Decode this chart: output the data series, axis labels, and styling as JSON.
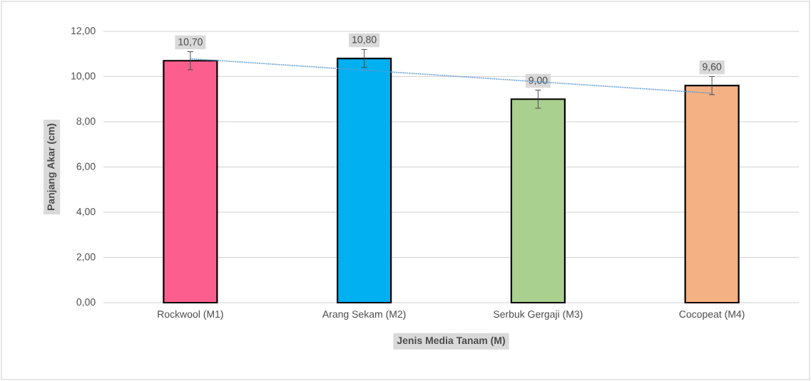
{
  "chart_data": {
    "type": "bar",
    "xlabel": "Jenis Media Tanam (M)",
    "ylabel": "Panjang Akar (cm)",
    "categories": [
      "Rockwool (M1)",
      "Arang Sekam (M2)",
      "Serbuk Gergaji (M3)",
      "Cocopeat (M4)"
    ],
    "series": [
      {
        "values": [
          10.7,
          10.8,
          9.0,
          9.6
        ],
        "colors": [
          "#fc5f8e",
          "#00b0f0",
          "#a9d08e",
          "#f4b183"
        ],
        "errors": [
          0.4,
          0.4,
          0.4,
          0.4
        ],
        "value_labels": [
          "10,70",
          "10,80",
          "9,00",
          "9,60"
        ]
      },
      {
        "type": "line",
        "color": "#5b9bd5",
        "line_style": "dotted",
        "values": [
          10.79,
          10.28,
          9.77,
          9.26
        ]
      }
    ],
    "ylim": [
      0,
      12
    ],
    "yticks": [
      {
        "value": 0,
        "label": "0,00"
      },
      {
        "value": 2,
        "label": "2,00"
      },
      {
        "value": 4,
        "label": "4,00"
      },
      {
        "value": 6,
        "label": "6,00"
      },
      {
        "value": 8,
        "label": "8,00"
      },
      {
        "value": 10,
        "label": "10,00"
      },
      {
        "value": 12,
        "label": "12,00"
      }
    ],
    "grid": "y"
  }
}
